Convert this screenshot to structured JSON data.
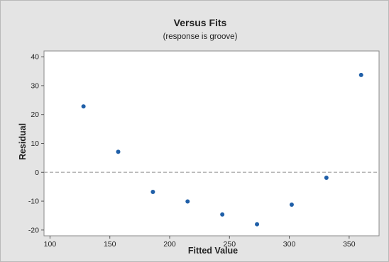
{
  "chart_data": {
    "type": "scatter",
    "title": "Versus Fits",
    "subtitle": "(response is groove)",
    "xlabel": "Fitted Value",
    "ylabel": "Residual",
    "xlim": [
      95,
      375
    ],
    "ylim": [
      -22,
      42
    ],
    "xticks": [
      100,
      150,
      200,
      250,
      300,
      350
    ],
    "yticks": [
      -20,
      -10,
      0,
      10,
      20,
      30,
      40
    ],
    "reference_line": {
      "y": 0,
      "style": "dashed"
    },
    "grid": false,
    "points": [
      {
        "x": 128,
        "y": 22.8
      },
      {
        "x": 157,
        "y": 7.1
      },
      {
        "x": 186,
        "y": -6.8
      },
      {
        "x": 215,
        "y": -10.1
      },
      {
        "x": 244,
        "y": -14.6
      },
      {
        "x": 273,
        "y": -18.0
      },
      {
        "x": 302,
        "y": -11.2
      },
      {
        "x": 331,
        "y": -1.9
      },
      {
        "x": 360,
        "y": 33.7
      }
    ],
    "colors": {
      "marker": "#1f5fa8",
      "reference_line": "#a9a9a9",
      "plot_background": "#ffffff",
      "outer_background": "#e4e4e4"
    }
  }
}
